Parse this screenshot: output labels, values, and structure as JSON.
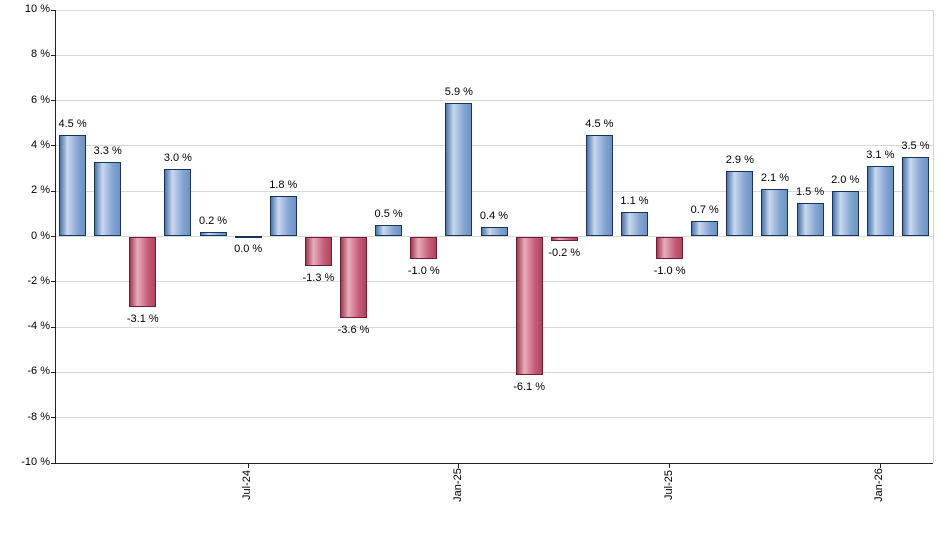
{
  "chart_data": {
    "type": "bar",
    "title": "",
    "xlabel": "",
    "ylabel": "",
    "ylim": [
      -10,
      10
    ],
    "grid": "horizontal",
    "values": [
      4.5,
      3.3,
      -3.1,
      3.0,
      0.2,
      0.0,
      1.8,
      -1.3,
      -3.6,
      0.5,
      -1.0,
      5.9,
      0.4,
      -6.1,
      -0.2,
      4.5,
      1.1,
      -1.0,
      0.7,
      2.9,
      2.1,
      1.5,
      2.0,
      3.1,
      3.5
    ],
    "bar_labels": [
      "4.5 %",
      "3.3 %",
      "-3.1 %",
      "3.0 %",
      "0.2 %",
      "0.0 %",
      "1.8 %",
      "-1.3 %",
      "-3.6 %",
      "0.5 %",
      "-1.0 %",
      "5.9 %",
      "0.4 %",
      "-6.1 %",
      "-0.2 %",
      "4.5 %",
      "1.1 %",
      "-1.0 %",
      "0.7 %",
      "2.9 %",
      "2.1 %",
      "1.5 %",
      "2.0 %",
      "3.1 %",
      "3.5 %"
    ],
    "x_ticks": [
      {
        "bar_index": 5,
        "label": "Jul-24"
      },
      {
        "bar_index": 11,
        "label": "Jan-25"
      },
      {
        "bar_index": 17,
        "label": "Jul-25"
      },
      {
        "bar_index": 23,
        "label": "Jan-26"
      }
    ],
    "y_ticks": [
      {
        "value": 10,
        "label": "10 %"
      },
      {
        "value": 8,
        "label": "8 %"
      },
      {
        "value": 6,
        "label": "6 %"
      },
      {
        "value": 4,
        "label": "4 %"
      },
      {
        "value": 2,
        "label": "2 %"
      },
      {
        "value": 0,
        "label": "0 %"
      },
      {
        "value": -2,
        "label": "-2 %"
      },
      {
        "value": -4,
        "label": "-4 %"
      },
      {
        "value": -6,
        "label": "-6 %"
      },
      {
        "value": -8,
        "label": "-8 %"
      },
      {
        "value": -10,
        "label": "-10 %"
      }
    ],
    "colors": {
      "positive_border": "#16365c",
      "positive_fill": [
        "#4a74ab",
        "#c9d8ee",
        "#86a5d3",
        "#6d92c3"
      ],
      "negative_border": "#6f1d33",
      "negative_fill": [
        "#a23852",
        "#e7adbb",
        "#c9607a",
        "#ac4460"
      ],
      "grid": "#d8d8d8",
      "axis": "#222222",
      "text": "#000000",
      "background": "#ffffff"
    }
  }
}
